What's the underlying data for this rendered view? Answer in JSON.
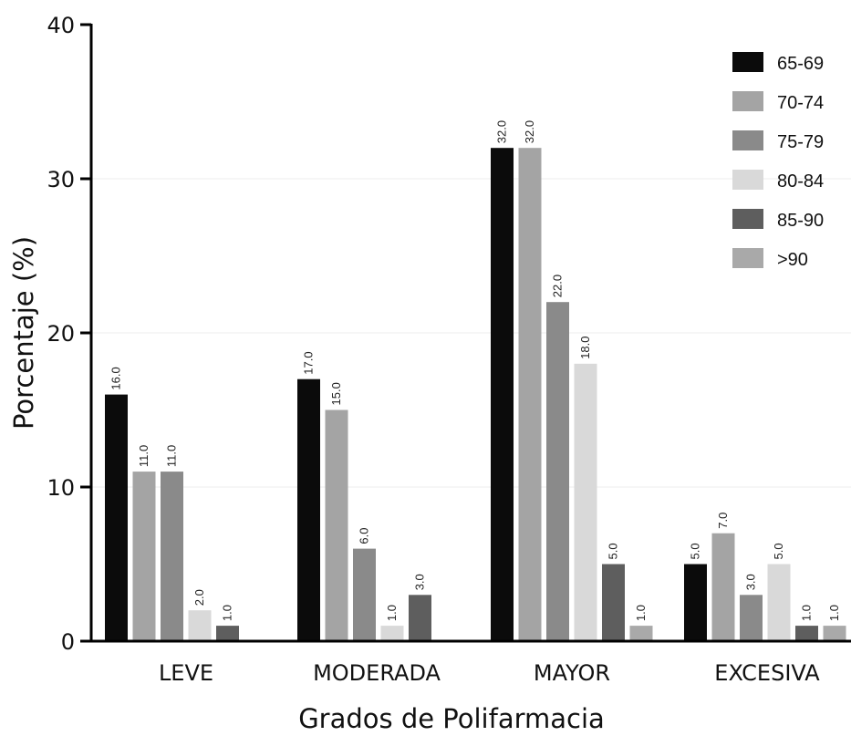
{
  "chart_data": {
    "type": "bar",
    "title": "",
    "xlabel": "Grados de Polifarmacia",
    "ylabel": "Porcentaje (%)",
    "ylim": [
      0,
      40
    ],
    "yticks": [
      "0",
      "10",
      "20",
      "30",
      "40"
    ],
    "grid": true,
    "legend_position": "top-right",
    "categories": [
      "LEVE",
      "MODERADA",
      "MAYOR",
      "EXCESIVA"
    ],
    "series": [
      {
        "name": "65-69",
        "color": "#0b0b0b",
        "values": [
          16.0,
          17.0,
          32.0,
          5.0
        ],
        "labels": [
          "16.0",
          "17.0",
          "32.0",
          "5.0"
        ]
      },
      {
        "name": "70-74",
        "color": "#a4a4a4",
        "values": [
          11.0,
          15.0,
          32.0,
          7.0
        ],
        "labels": [
          "11.0",
          "15.0",
          "32.0",
          "7.0"
        ]
      },
      {
        "name": "75-79",
        "color": "#8a8a8a",
        "values": [
          11.0,
          6.0,
          22.0,
          3.0
        ],
        "labels": [
          "11.0",
          "6.0",
          "22.0",
          "3.0"
        ]
      },
      {
        "name": "80-84",
        "color": "#d9d9d9",
        "values": [
          2.0,
          1.0,
          18.0,
          5.0
        ],
        "labels": [
          "2.0",
          "1.0",
          "18.0",
          "5.0"
        ]
      },
      {
        "name": "85-90",
        "color": "#5e5e5e",
        "values": [
          1.0,
          3.0,
          5.0,
          1.0
        ],
        "labels": [
          "1.0",
          "3.0",
          "5.0",
          "1.0"
        ]
      },
      {
        "name": ">90",
        "color": "#a9a9a9",
        "values": [
          null,
          null,
          1.0,
          1.0
        ],
        "labels": [
          null,
          null,
          "1.0",
          "1.0"
        ]
      }
    ]
  }
}
